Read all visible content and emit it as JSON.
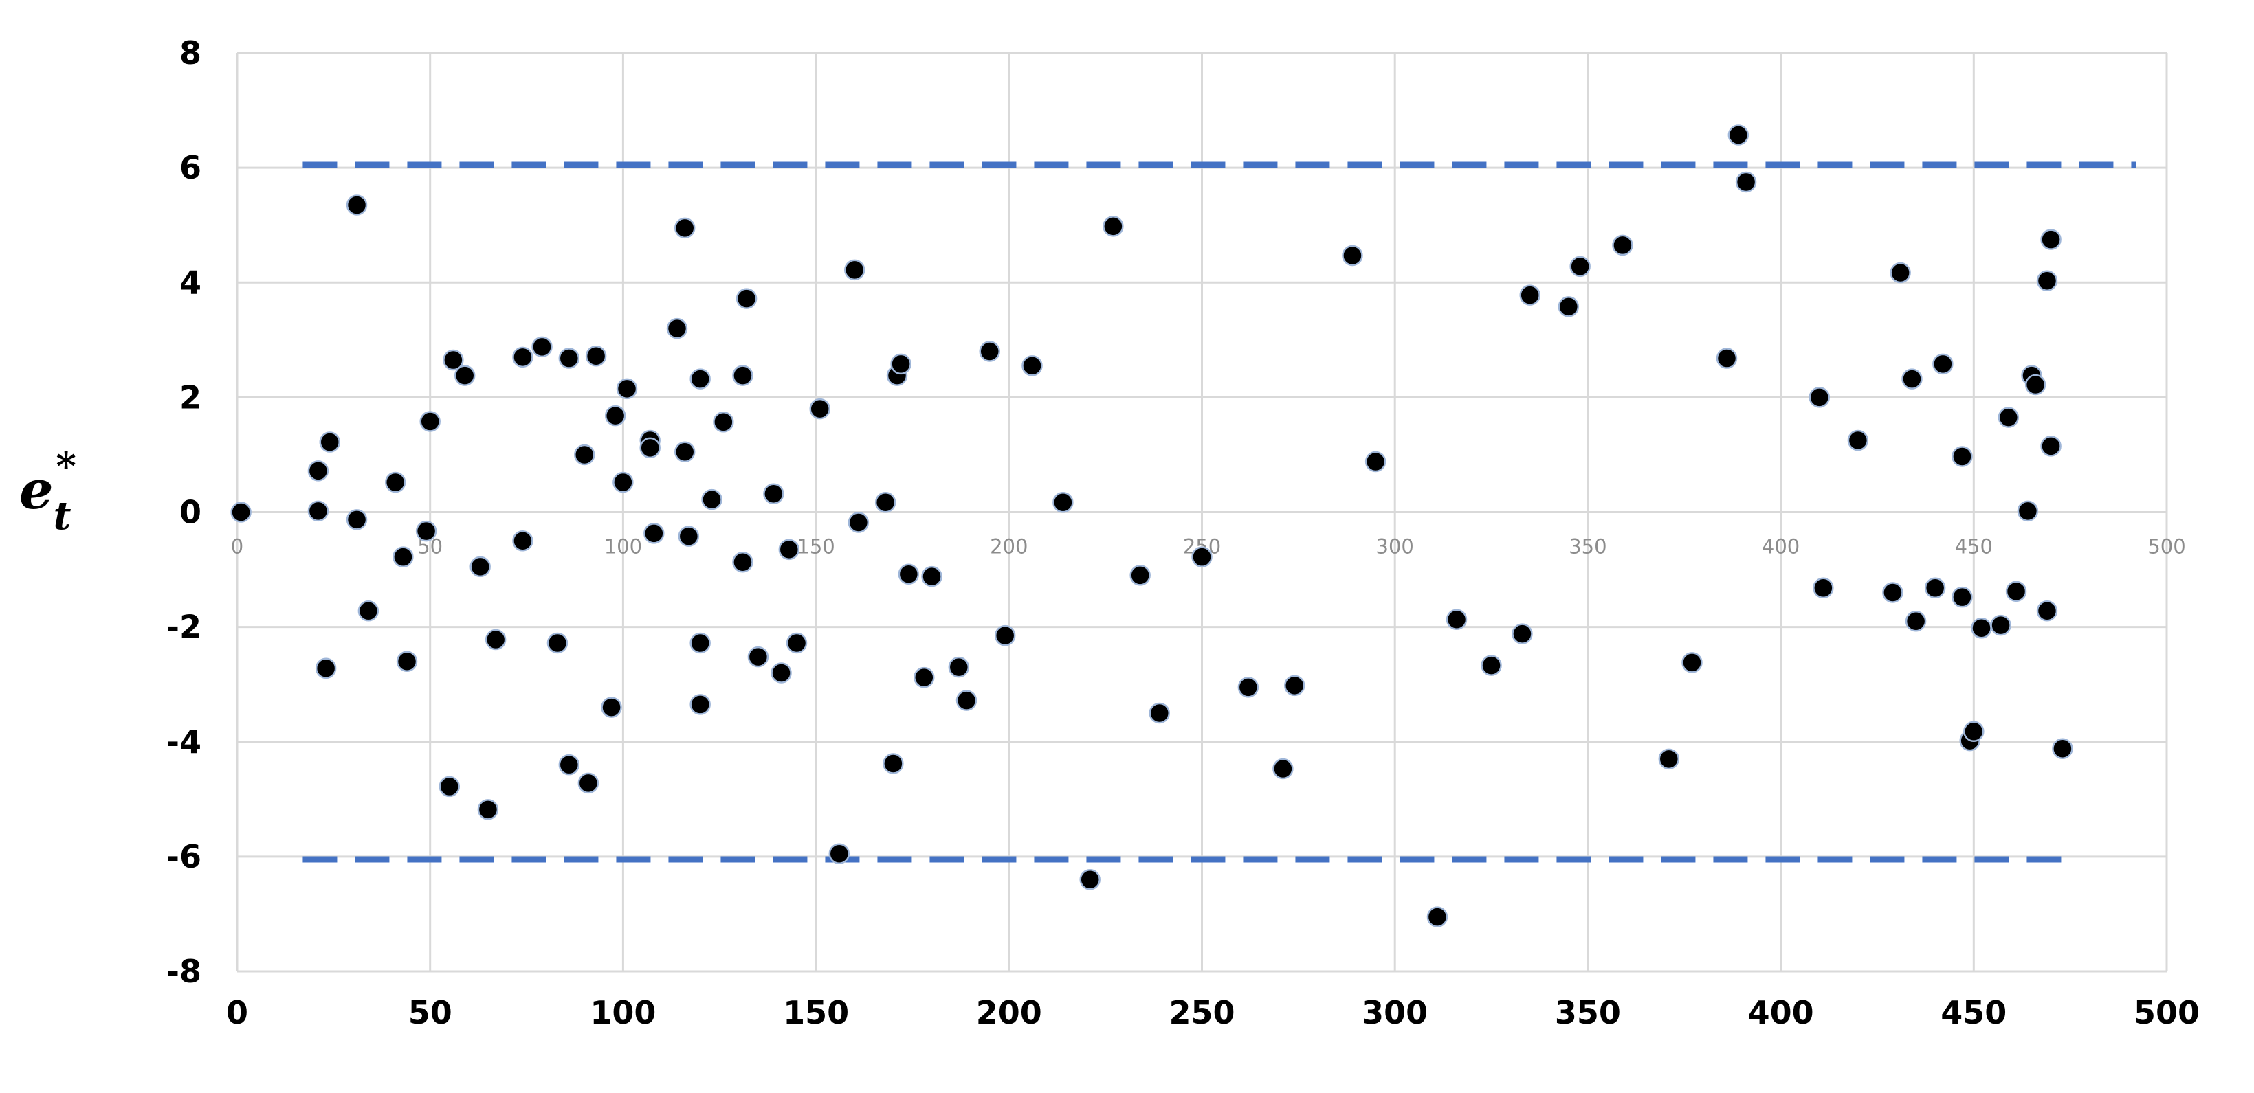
{
  "chart_data": {
    "type": "scatter",
    "title": "",
    "xlabel": "",
    "ylabel": "e*_t",
    "ylabel_base": "e",
    "ylabel_sup": "*",
    "ylabel_sub": "t",
    "xlim": [
      0,
      500
    ],
    "ylim": [
      -8,
      8
    ],
    "xticks": [
      0,
      50,
      100,
      150,
      200,
      250,
      300,
      350,
      400,
      450,
      500
    ],
    "yticks": [
      -8,
      -6,
      -4,
      -2,
      0,
      2,
      4,
      6,
      8
    ],
    "grid": true,
    "legend": "none",
    "point_color": "#000000",
    "threshold_color": "#4472c4",
    "thresholds": [
      {
        "y": 6.05,
        "x_start": 17,
        "x_end": 492
      },
      {
        "y": -6.05,
        "x_start": 17,
        "x_end": 476
      }
    ],
    "series": [
      {
        "x": [
          1,
          21,
          21,
          23,
          24,
          31,
          31,
          34,
          41,
          43,
          44,
          49,
          50,
          55,
          56,
          59,
          63,
          65,
          67,
          74,
          74,
          79,
          83,
          86,
          86,
          90,
          91,
          93,
          97,
          98,
          100,
          101,
          107,
          107,
          108,
          114,
          116,
          116,
          117,
          120,
          120,
          120,
          123,
          126,
          131,
          131,
          132,
          135,
          139,
          141,
          143,
          145,
          151,
          156,
          160,
          161,
          168,
          170,
          171,
          172,
          174,
          178,
          180,
          187,
          189,
          195,
          199,
          206,
          214,
          221,
          227,
          234,
          239,
          250,
          262,
          271,
          274,
          289,
          295,
          311,
          316,
          325,
          333,
          335,
          345,
          348,
          359,
          371,
          377,
          386,
          389,
          391,
          410,
          411,
          420,
          429,
          431,
          434,
          435,
          440,
          442,
          447,
          447,
          449,
          450,
          452,
          457,
          459,
          461,
          464,
          465,
          466,
          469,
          469,
          470,
          470,
          473
        ],
        "y": [
          0.0,
          0.72,
          0.02,
          -2.72,
          1.22,
          5.35,
          -0.13,
          -1.72,
          0.52,
          -0.78,
          -2.6,
          -0.33,
          1.58,
          -4.78,
          2.65,
          2.38,
          -0.95,
          -5.18,
          -2.22,
          2.7,
          -0.5,
          2.88,
          -2.28,
          -4.4,
          2.68,
          1.0,
          -4.72,
          2.72,
          -3.4,
          1.68,
          0.52,
          2.15,
          1.25,
          1.12,
          -0.37,
          3.2,
          4.95,
          1.05,
          -0.42,
          2.32,
          -2.28,
          -3.35,
          0.22,
          1.57,
          2.38,
          -0.87,
          3.72,
          -2.52,
          0.32,
          -2.8,
          -0.65,
          -2.28,
          1.8,
          -5.95,
          4.22,
          -0.18,
          0.17,
          -4.38,
          2.38,
          2.58,
          -1.08,
          -2.88,
          -1.12,
          -2.7,
          -3.28,
          2.8,
          -2.15,
          2.55,
          0.17,
          -6.4,
          4.98,
          -1.1,
          -3.5,
          -0.78,
          -3.05,
          -4.47,
          -3.02,
          4.47,
          0.88,
          -7.05,
          -1.87,
          -2.67,
          -2.12,
          3.78,
          3.58,
          4.28,
          4.65,
          -4.3,
          -2.62,
          2.68,
          6.57,
          5.75,
          2.0,
          -1.32,
          1.25,
          -1.4,
          4.17,
          2.32,
          -1.9,
          -1.32,
          2.58,
          0.97,
          -1.48,
          -3.98,
          -3.82,
          -2.02,
          -1.97,
          1.65,
          -1.38,
          0.02,
          2.38,
          2.22,
          -1.72,
          4.03,
          4.75,
          1.15,
          -4.12
        ]
      }
    ]
  }
}
